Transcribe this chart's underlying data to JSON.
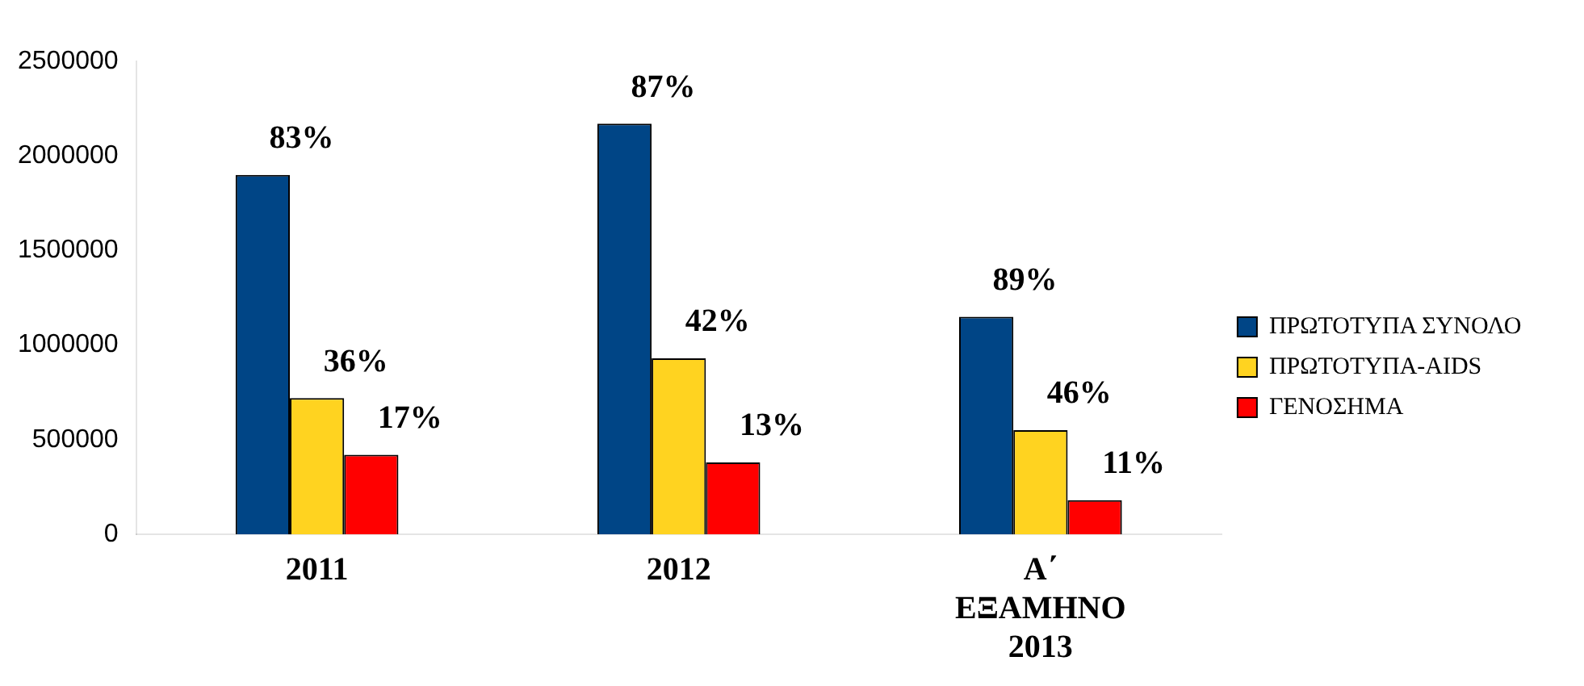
{
  "chart_data": {
    "type": "bar",
    "categories": [
      "2011",
      "2012",
      "Α΄ ΕΞΑΜΗΝΟ 2013"
    ],
    "series": [
      {
        "name": "ΠΡΩΤΟΤΥΠΑ ΣΥΝΟΛΟ",
        "color": "#004586",
        "values": [
          1900000,
          2170000,
          1150000
        ]
      },
      {
        "name": "ΠΡΩΤΟΤΥΠΑ-AIDS",
        "color": "#ffd320",
        "values": [
          720000,
          930000,
          550000
        ]
      },
      {
        "name": "ΓΕΝΟΣΗΜΑ",
        "color": "#ff0000",
        "values": [
          420000,
          380000,
          180000
        ]
      }
    ],
    "annotations": [
      "83%",
      "87%",
      "89%",
      "36%",
      "42%",
      "46%",
      "17%",
      "13%",
      "11%"
    ],
    "ylim": [
      0,
      2500000
    ],
    "yticks": [
      0,
      500000,
      1000000,
      1500000,
      2000000,
      2500000
    ],
    "grid": false,
    "legend": "right"
  }
}
